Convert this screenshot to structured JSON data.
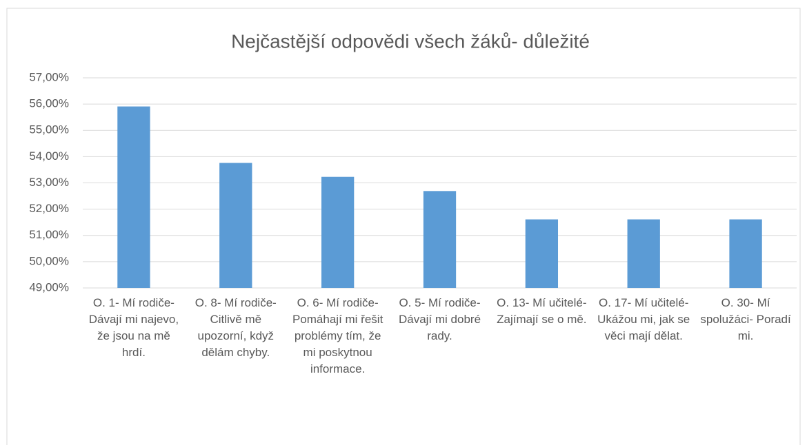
{
  "chart_data": {
    "type": "bar",
    "title": "Nejčastější odpovědi všech žáků- důležité",
    "categories": [
      "O. 1- Mí rodiče- Dávají mi najevo, že jsou na mě hrdí.",
      "O. 8- Mí rodiče- Citlivě mě upozorní, když dělám chyby.",
      "O. 6- Mí rodiče- Pomáhají mi řešit problémy tím, že mi poskytnou informace.",
      "O. 5- Mí rodiče- Dávají mi dobré rady.",
      "O. 13- Mí učitelé- Zajímají se o mě.",
      "O. 17- Mí učitelé- Ukážou mi, jak se věci mají dělat.",
      "O. 30- Mí spolužáci- Poradí mi."
    ],
    "values": [
      55.91,
      53.76,
      53.23,
      52.69,
      51.61,
      51.61,
      51.61
    ],
    "color": "#5b9bd5",
    "ylim": [
      49,
      57
    ],
    "yticks": [
      {
        "value": 49,
        "label": "49,00%"
      },
      {
        "value": 50,
        "label": "50,00%"
      },
      {
        "value": 51,
        "label": "51,00%"
      },
      {
        "value": 52,
        "label": "52,00%"
      },
      {
        "value": 53,
        "label": "53,00%"
      },
      {
        "value": 54,
        "label": "54,00%"
      },
      {
        "value": 55,
        "label": "55,00%"
      },
      {
        "value": 56,
        "label": "56,00%"
      },
      {
        "value": 57,
        "label": "57,00%"
      }
    ],
    "grid": true
  }
}
